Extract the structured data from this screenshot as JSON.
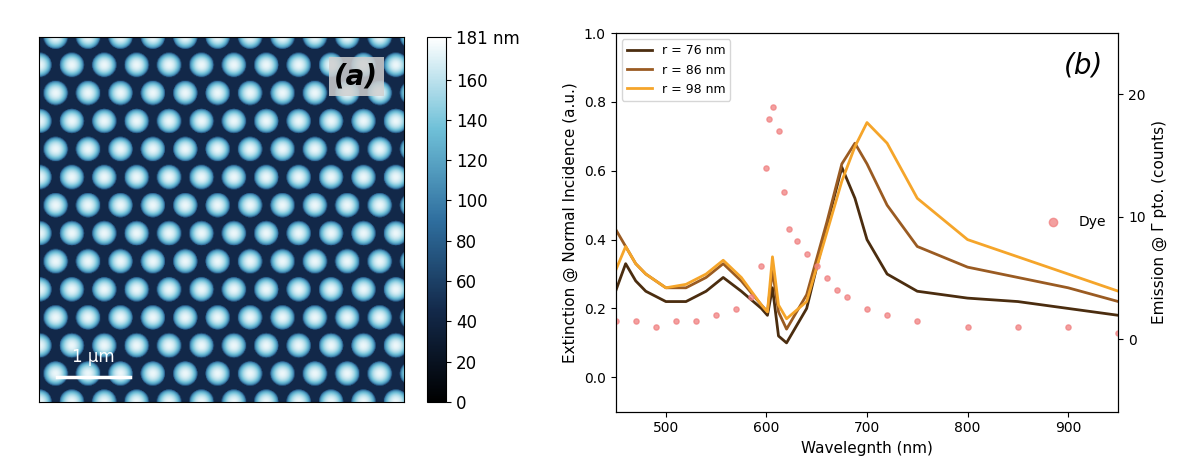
{
  "chart_data": [
    {
      "type": "heatmap",
      "label": "(a)",
      "tick_labels": false,
      "extent": [
        0,
        5
      ],
      "lattice_period": 0.445,
      "particle_radius": 0.17,
      "particle_height": 130,
      "substrate_height": 45,
      "scale_bar": {
        "length": 1,
        "label": "1 µm"
      },
      "colorbar": {
        "range": [
          0,
          181
        ],
        "ticks": [
          0,
          20,
          40,
          60,
          80,
          100,
          120,
          140,
          160,
          {
            "value": 181,
            "label": "181 nm"
          }
        ]
      }
    },
    {
      "type": "line",
      "label": "(b)",
      "x_label": "Wavelegnth (nm)",
      "y_label": "Extinction @ Normal Incidence (a.u.)",
      "y2_label": "Emission @ Γ pto. (counts)",
      "xlim": [
        450,
        950
      ],
      "xticks": [
        500,
        600,
        700,
        800,
        900
      ],
      "ylim": [
        -0.1,
        1.0
      ],
      "yticks": [
        0.0,
        0.2,
        0.4,
        0.6,
        0.8,
        1.0
      ],
      "y2lim": [
        -5.9,
        25
      ],
      "y2ticks": [
        0,
        10,
        20
      ],
      "legend": "upper left",
      "x": [
        450,
        460,
        470,
        480,
        500,
        520,
        540,
        557,
        575,
        595,
        601,
        606,
        612,
        620,
        640,
        660,
        675,
        688,
        700,
        720,
        750,
        800,
        850,
        900,
        950
      ],
      "series": [
        {
          "name": "r = 76 nm",
          "color": "#4b2d0f",
          "values": [
            0.25,
            0.33,
            0.28,
            0.25,
            0.22,
            0.22,
            0.25,
            0.29,
            0.25,
            0.2,
            0.18,
            0.26,
            0.12,
            0.1,
            0.2,
            0.44,
            0.61,
            0.52,
            0.4,
            0.3,
            0.25,
            0.23,
            0.22,
            0.2,
            0.18
          ]
        },
        {
          "name": "r = 86 nm",
          "color": "#9a5b22",
          "values": [
            0.43,
            0.38,
            0.33,
            0.3,
            0.26,
            0.26,
            0.29,
            0.33,
            0.28,
            0.21,
            0.19,
            0.31,
            0.19,
            0.14,
            0.24,
            0.45,
            0.62,
            0.68,
            0.62,
            0.5,
            0.38,
            0.32,
            0.29,
            0.26,
            0.22
          ]
        },
        {
          "name": "r = 98 nm",
          "color": "#f5a52a",
          "values": [
            0.31,
            0.38,
            0.33,
            0.3,
            0.26,
            0.27,
            0.3,
            0.34,
            0.29,
            0.21,
            0.19,
            0.35,
            0.21,
            0.17,
            0.22,
            0.42,
            0.57,
            0.67,
            0.74,
            0.68,
            0.52,
            0.4,
            0.35,
            0.3,
            0.25
          ]
        }
      ],
      "dye": {
        "name": "Dye",
        "type": "scatter",
        "axis": "y2",
        "color": "#f08080",
        "marker": "o",
        "x": [
          450,
          470,
          490,
          510,
          530,
          550,
          570,
          585,
          595,
          600,
          603,
          607,
          612,
          617,
          622,
          630,
          640,
          650,
          660,
          670,
          680,
          700,
          720,
          750,
          800,
          850,
          900,
          950
        ],
        "values": [
          1.5,
          1.5,
          1.0,
          1.5,
          1.5,
          2.0,
          2.5,
          3.5,
          6,
          14,
          18,
          19,
          17,
          12,
          9,
          8,
          7,
          6,
          5,
          4,
          3.5,
          2.5,
          2,
          1.5,
          1,
          1,
          1,
          0.5
        ]
      }
    }
  ]
}
